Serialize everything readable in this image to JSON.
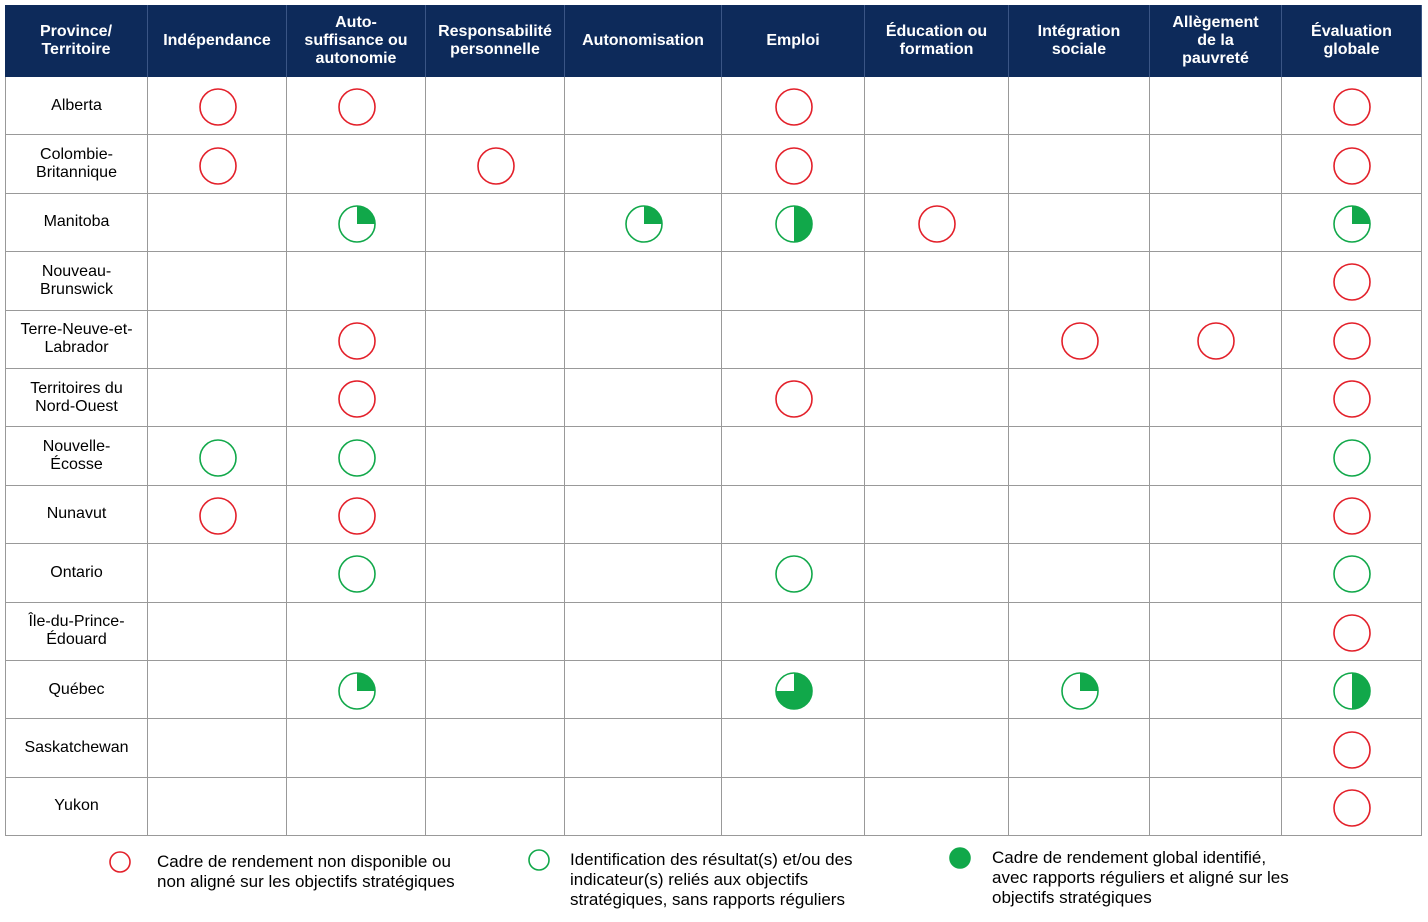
{
  "table": {
    "headers": [
      "Province/\nTerritoire",
      "Indépendance",
      "Auto-\nsuffisance ou\nautonomie",
      "Responsabilité\npersonnelle",
      "Autonomisation",
      "Emploi",
      "Éducation ou\nformation",
      "Intégration\nsociale",
      "Allègement\nde la\npauvreté",
      "Évaluation\nglobale"
    ],
    "rows": [
      [
        "Alberta",
        "red",
        "red",
        null,
        null,
        "red",
        null,
        null,
        null,
        "red"
      ],
      [
        "Colombie-\nBritannique",
        "red",
        null,
        "red",
        null,
        "red",
        null,
        null,
        null,
        "red"
      ],
      [
        "Manitoba",
        null,
        25,
        null,
        25,
        50,
        "red",
        null,
        null,
        25
      ],
      [
        "Nouveau-\nBrunswick",
        null,
        null,
        null,
        null,
        null,
        null,
        null,
        null,
        "red"
      ],
      [
        "Terre-Neuve-et-\nLabrador",
        null,
        "red",
        null,
        null,
        null,
        null,
        "red",
        "red",
        "red"
      ],
      [
        "Territoires du\nNord-Ouest",
        null,
        "red",
        null,
        null,
        "red",
        null,
        null,
        null,
        "red"
      ],
      [
        "Nouvelle-\nÉcosse",
        0,
        0,
        null,
        null,
        null,
        null,
        null,
        null,
        0
      ],
      [
        "Nunavut",
        "red",
        "red",
        null,
        null,
        null,
        null,
        null,
        null,
        "red"
      ],
      [
        "Ontario",
        null,
        0,
        null,
        null,
        0,
        null,
        null,
        null,
        0
      ],
      [
        "Île-du-Prince-\nÉdouard",
        null,
        null,
        null,
        null,
        null,
        null,
        null,
        null,
        "red"
      ],
      [
        "Québec",
        null,
        25,
        null,
        null,
        75,
        null,
        25,
        null,
        50
      ],
      [
        "Saskatchewan",
        null,
        null,
        null,
        null,
        null,
        null,
        null,
        null,
        "red"
      ],
      [
        "Yukon",
        null,
        null,
        null,
        null,
        null,
        null,
        null,
        null,
        "red"
      ]
    ]
  },
  "legend": [
    {
      "symbol": "red",
      "text": "Cadre de rendement non disponible ou\nnon aligné sur les objectifs stratégiques"
    },
    {
      "symbol": 0,
      "text": "Identification des résultat(s) et/ou des\nindicateur(s) reliés aux objectifs\nstratégiques, sans rapports réguliers"
    },
    {
      "symbol": 100,
      "text": "Cadre de rendement global identifié,\navec rapports réguliers et aligné sur les\nobjectifs stratégiques"
    }
  ]
}
